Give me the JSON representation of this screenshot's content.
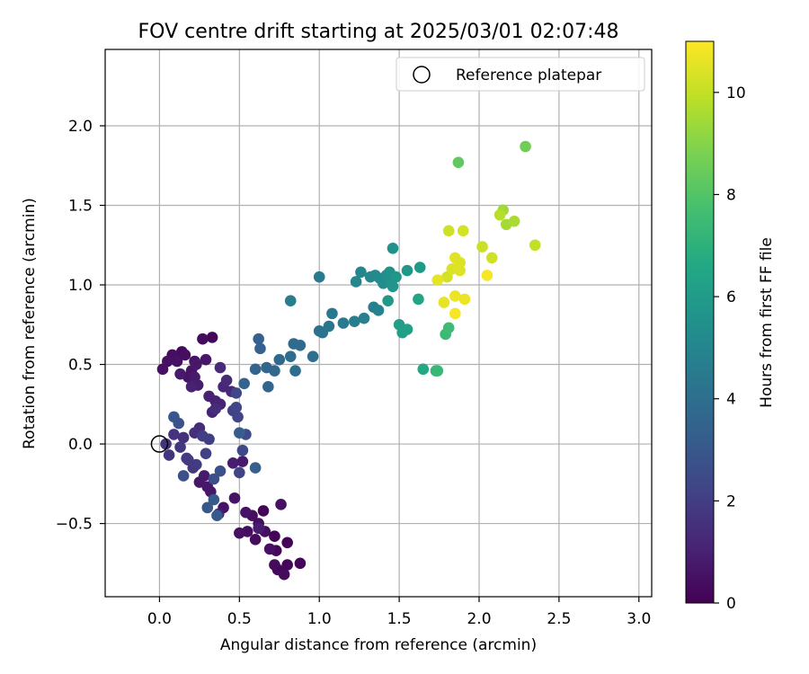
{
  "chart_data": {
    "type": "scatter",
    "title": "FOV centre drift starting at 2025/03/01 02:07:48",
    "xlabel": "Angular distance from reference (arcmin)",
    "ylabel": "Rotation from reference (arcmin)",
    "xlim": [
      -0.34,
      3.08
    ],
    "ylim": [
      -0.96,
      2.48
    ],
    "xticks": [
      "0.0",
      "0.5",
      "1.0",
      "1.5",
      "2.0",
      "2.5",
      "3.0"
    ],
    "yticks": [
      "−0.5",
      "0.0",
      "0.5",
      "1.0",
      "1.5",
      "2.0"
    ],
    "grid": true,
    "legend": {
      "position": "top-right",
      "entries": [
        "Reference platepar"
      ]
    },
    "reference_point": {
      "x": 0.0,
      "y": 0.0
    },
    "colorbar": {
      "label": "Hours from first FF file",
      "colormap": "viridis",
      "range": [
        0,
        11
      ],
      "ticks": [
        "0",
        "2",
        "4",
        "6",
        "8",
        "10"
      ]
    },
    "series": [
      {
        "columns": [
          "x",
          "y",
          "hours"
        ],
        "points": [
          [
            0.65,
            -0.42,
            0.1
          ],
          [
            0.72,
            -0.58,
            0.1
          ],
          [
            0.8,
            -0.62,
            0.1
          ],
          [
            0.73,
            -0.67,
            0.2
          ],
          [
            0.8,
            -0.76,
            0.2
          ],
          [
            0.88,
            -0.75,
            0.2
          ],
          [
            0.74,
            -0.79,
            0.2
          ],
          [
            0.78,
            -0.82,
            0.3
          ],
          [
            0.72,
            -0.76,
            0.3
          ],
          [
            0.6,
            -0.6,
            0.3
          ],
          [
            0.55,
            -0.55,
            0.4
          ],
          [
            0.62,
            -0.5,
            0.4
          ],
          [
            0.58,
            -0.45,
            0.4
          ],
          [
            0.66,
            -0.55,
            0.4
          ],
          [
            0.76,
            -0.38,
            0.5
          ],
          [
            0.69,
            -0.66,
            0.5
          ],
          [
            0.5,
            -0.56,
            0.5
          ],
          [
            0.54,
            -0.43,
            0.6
          ],
          [
            0.47,
            -0.34,
            0.6
          ],
          [
            0.4,
            -0.4,
            0.6
          ],
          [
            0.32,
            -0.3,
            0.7
          ],
          [
            0.3,
            -0.27,
            0.7
          ],
          [
            0.25,
            -0.24,
            0.7
          ],
          [
            0.28,
            -0.2,
            0.8
          ],
          [
            0.52,
            -0.11,
            0.8
          ],
          [
            0.46,
            -0.12,
            0.9
          ],
          [
            0.37,
            -0.44,
            0.9
          ],
          [
            0.62,
            -0.53,
            0.9
          ],
          [
            0.33,
            0.67,
            0.2
          ],
          [
            0.27,
            0.66,
            0.3
          ],
          [
            0.14,
            0.58,
            0.3
          ],
          [
            0.16,
            0.56,
            0.4
          ],
          [
            0.08,
            0.56,
            0.4
          ],
          [
            0.11,
            0.52,
            0.5
          ],
          [
            0.05,
            0.52,
            0.5
          ],
          [
            0.02,
            0.47,
            0.5
          ],
          [
            0.2,
            0.46,
            0.6
          ],
          [
            0.18,
            0.42,
            0.6
          ],
          [
            0.22,
            0.52,
            0.6
          ],
          [
            0.29,
            0.53,
            0.7
          ],
          [
            0.23,
            0.5,
            0.7
          ],
          [
            0.13,
            0.44,
            0.8
          ],
          [
            0.22,
            0.42,
            0.8
          ],
          [
            0.24,
            0.37,
            0.9
          ],
          [
            0.2,
            0.36,
            1.0
          ],
          [
            0.31,
            0.3,
            1.0
          ],
          [
            0.35,
            0.27,
            1.0
          ],
          [
            0.33,
            0.2,
            1.1
          ],
          [
            0.38,
            0.25,
            1.1
          ],
          [
            0.45,
            0.33,
            1.2
          ],
          [
            0.4,
            0.36,
            1.2
          ],
          [
            0.38,
            0.48,
            1.3
          ],
          [
            0.42,
            0.4,
            1.3
          ],
          [
            0.35,
            0.22,
            1.4
          ],
          [
            0.25,
            0.1,
            1.4
          ],
          [
            0.22,
            0.07,
            1.5
          ],
          [
            0.15,
            0.04,
            1.5
          ],
          [
            0.09,
            0.06,
            1.6
          ],
          [
            0.04,
            0.0,
            1.6
          ],
          [
            0.06,
            -0.07,
            1.7
          ],
          [
            0.13,
            -0.02,
            1.7
          ],
          [
            0.17,
            -0.09,
            1.8
          ],
          [
            0.21,
            -0.15,
            1.8
          ],
          [
            0.18,
            -0.1,
            1.9
          ],
          [
            0.23,
            -0.13,
            1.9
          ],
          [
            0.27,
            0.05,
            2.0
          ],
          [
            0.31,
            0.03,
            2.0
          ],
          [
            0.29,
            -0.06,
            2.1
          ],
          [
            0.46,
            0.21,
            2.1
          ],
          [
            0.49,
            0.17,
            2.2
          ],
          [
            0.5,
            -0.18,
            2.2
          ],
          [
            0.48,
            0.23,
            2.3
          ],
          [
            0.48,
            0.32,
            2.3
          ],
          [
            0.52,
            -0.04,
            2.4
          ],
          [
            0.54,
            0.06,
            2.5
          ],
          [
            0.34,
            -0.22,
            2.6
          ],
          [
            0.38,
            -0.17,
            2.7
          ],
          [
            0.15,
            -0.2,
            2.7
          ],
          [
            0.12,
            0.13,
            2.8
          ],
          [
            0.09,
            0.17,
            2.9
          ],
          [
            0.3,
            -0.4,
            3.0
          ],
          [
            0.36,
            -0.45,
            3.1
          ],
          [
            0.34,
            -0.35,
            3.1
          ],
          [
            0.5,
            0.07,
            3.2
          ],
          [
            0.6,
            -0.15,
            3.3
          ],
          [
            0.62,
            0.66,
            3.4
          ],
          [
            0.63,
            0.6,
            3.4
          ],
          [
            0.53,
            0.38,
            3.5
          ],
          [
            0.6,
            0.47,
            3.5
          ],
          [
            0.67,
            0.48,
            3.6
          ],
          [
            0.68,
            0.36,
            3.6
          ],
          [
            0.72,
            0.46,
            3.7
          ],
          [
            0.75,
            0.53,
            3.7
          ],
          [
            0.84,
            0.63,
            3.8
          ],
          [
            0.88,
            0.62,
            3.8
          ],
          [
            0.85,
            0.46,
            3.9
          ],
          [
            0.82,
            0.55,
            3.9
          ],
          [
            0.96,
            0.55,
            4.0
          ],
          [
            1.0,
            0.71,
            4.1
          ],
          [
            1.02,
            0.7,
            4.2
          ],
          [
            1.06,
            0.74,
            4.3
          ],
          [
            1.08,
            0.82,
            4.4
          ],
          [
            1.15,
            0.76,
            4.5
          ],
          [
            1.22,
            0.77,
            4.6
          ],
          [
            1.28,
            0.79,
            4.7
          ],
          [
            1.34,
            0.86,
            4.8
          ],
          [
            1.37,
            0.84,
            4.9
          ],
          [
            1.23,
            1.02,
            5.0
          ],
          [
            1.26,
            1.08,
            5.0
          ],
          [
            1.0,
            1.05,
            4.5
          ],
          [
            0.82,
            0.9,
            4.6
          ],
          [
            1.32,
            1.05,
            5.1
          ],
          [
            1.35,
            1.06,
            5.1
          ],
          [
            1.38,
            1.04,
            5.2
          ],
          [
            1.4,
            1.01,
            5.3
          ],
          [
            1.42,
            1.06,
            5.4
          ],
          [
            1.44,
            1.08,
            5.5
          ],
          [
            1.45,
            1.02,
            5.6
          ],
          [
            1.46,
            1.23,
            5.5
          ],
          [
            1.43,
            0.9,
            5.9
          ],
          [
            1.46,
            0.99,
            5.7
          ],
          [
            1.48,
            1.05,
            5.8
          ],
          [
            1.55,
            1.09,
            5.8
          ],
          [
            1.63,
            1.11,
            5.9
          ],
          [
            1.5,
            0.75,
            6.1
          ],
          [
            1.52,
            0.7,
            6.2
          ],
          [
            1.55,
            0.72,
            6.2
          ],
          [
            1.62,
            0.91,
            6.4
          ],
          [
            1.65,
            0.47,
            6.6
          ],
          [
            1.73,
            0.46,
            7.2
          ],
          [
            1.74,
            0.46,
            7.3
          ],
          [
            1.79,
            0.69,
            7.4
          ],
          [
            1.81,
            0.73,
            7.5
          ],
          [
            1.87,
            1.77,
            8.3
          ],
          [
            2.29,
            1.87,
            8.6
          ],
          [
            2.15,
            1.47,
            9.4
          ],
          [
            2.17,
            1.38,
            9.5
          ],
          [
            2.22,
            1.4,
            9.6
          ],
          [
            2.13,
            1.44,
            9.8
          ],
          [
            2.35,
            1.25,
            10.0
          ],
          [
            2.02,
            1.24,
            10.1
          ],
          [
            2.08,
            1.17,
            10.2
          ],
          [
            1.81,
            1.34,
            10.2
          ],
          [
            1.9,
            1.34,
            10.3
          ],
          [
            1.8,
            1.05,
            10.3
          ],
          [
            1.83,
            1.1,
            10.4
          ],
          [
            1.85,
            1.17,
            10.5
          ],
          [
            1.88,
            1.14,
            10.4
          ],
          [
            1.88,
            1.09,
            10.5
          ],
          [
            1.74,
            1.03,
            10.6
          ],
          [
            1.78,
            0.89,
            10.6
          ],
          [
            1.85,
            0.93,
            10.7
          ],
          [
            1.91,
            0.91,
            10.7
          ],
          [
            1.85,
            0.82,
            10.9
          ],
          [
            2.05,
            1.06,
            10.9
          ]
        ]
      }
    ]
  }
}
